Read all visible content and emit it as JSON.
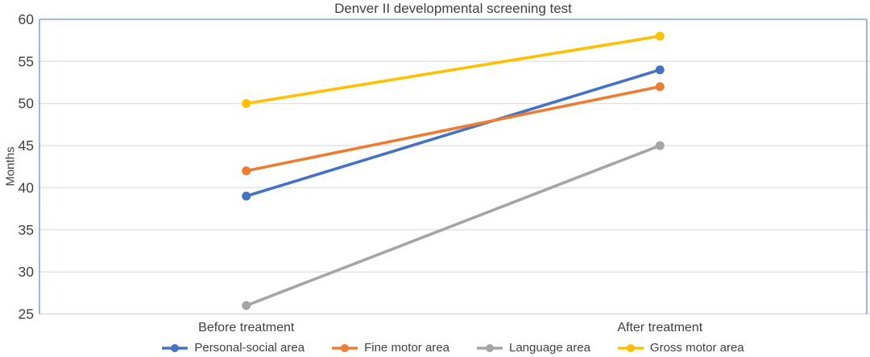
{
  "chart_data": {
    "type": "line",
    "title": "Denver II developmental screening test",
    "xlabel": "",
    "ylabel": "Months",
    "categories": [
      "Before treatment",
      "After treatment"
    ],
    "series": [
      {
        "name": "Personal-social area",
        "values": [
          39,
          54
        ],
        "color": "#4472C4"
      },
      {
        "name": "Fine motor area",
        "values": [
          42,
          52
        ],
        "color": "#ED7D31"
      },
      {
        "name": "Language area",
        "values": [
          26,
          45
        ],
        "color": "#A5A5A5"
      },
      {
        "name": "Gross motor area",
        "values": [
          50,
          58
        ],
        "color": "#FFC000"
      }
    ],
    "ylim": [
      25,
      60
    ],
    "yticks": [
      25,
      30,
      35,
      40,
      45,
      50,
      55,
      60
    ],
    "grid": true,
    "legend_position": "bottom",
    "marker": "circle"
  },
  "style": {
    "plot_border_color": "#85A3D6",
    "gridline_color": "#E2E2E2",
    "bottom_line_color": "#D9D9D9",
    "text_color": "#404040",
    "background": "#FFFFFF"
  }
}
